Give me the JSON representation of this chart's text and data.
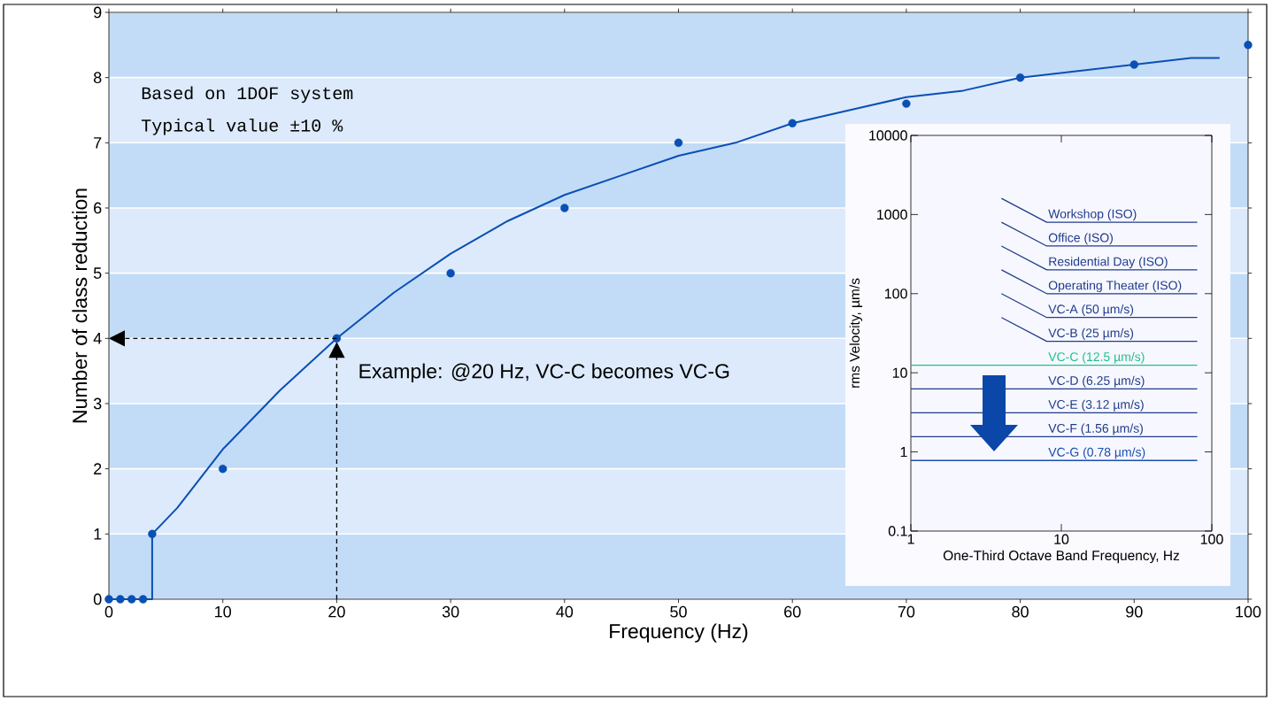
{
  "chart_data": [
    {
      "type": "scatter",
      "xlabel": "Frequency (Hz)",
      "ylabel": "Number of class reduction",
      "xlim": [
        0,
        100
      ],
      "ylim": [
        0,
        9
      ],
      "xticks": [
        0,
        10,
        20,
        30,
        40,
        50,
        60,
        70,
        80,
        90,
        100
      ],
      "yticks": [
        0,
        1,
        2,
        3,
        4,
        5,
        6,
        7,
        8,
        9
      ],
      "grid": "y",
      "annotations": [
        "Based on 1DOF system",
        "Typical value ±10 %",
        {
          "text": "Example: @20 Hz, VC-C becomes VC-G",
          "x": 20,
          "y": 4
        }
      ],
      "series": [
        {
          "type": "scatter",
          "marker": "circle",
          "color": "#0a4fb4",
          "x": [
            0,
            1,
            2,
            3,
            3.8,
            10,
            20,
            30,
            40,
            50,
            60,
            70,
            80,
            90,
            100
          ],
          "values": [
            0,
            0,
            0,
            0,
            1,
            2,
            4,
            5,
            6,
            7,
            7.3,
            7.6,
            8,
            8.2,
            8.5
          ]
        },
        {
          "type": "line",
          "marker": "none",
          "color": "#0a4fb4",
          "x": [
            0,
            3.8,
            3.8,
            6,
            10,
            15,
            20,
            25,
            30,
            35,
            40,
            45,
            50,
            55,
            60,
            65,
            70,
            75,
            80,
            85,
            90,
            95,
            97.5
          ],
          "values": [
            0,
            0,
            1,
            1.4,
            2.3,
            3.2,
            4,
            4.7,
            5.3,
            5.8,
            6.2,
            6.5,
            6.8,
            7.0,
            7.3,
            7.5,
            7.7,
            7.8,
            8.0,
            8.1,
            8.2,
            8.3,
            8.3
          ]
        }
      ]
    },
    {
      "type": "line",
      "xlabel": "One-Third Octave Band Frequency, Hz",
      "ylabel": "rms Velocity, µm/s",
      "log": "xy",
      "xlim": [
        1,
        100
      ],
      "ylim": [
        0.1,
        10000
      ],
      "xticks": [
        1,
        10,
        100
      ],
      "yticks": [
        0.1,
        1,
        10,
        100,
        1000,
        10000
      ],
      "series": [
        {
          "name": "Workshop (ISO)",
          "color": "#1f3d8c",
          "x": [
            4,
            8,
            80
          ],
          "values": [
            1600,
            800,
            800
          ]
        },
        {
          "name": "Office (ISO)",
          "color": "#1f3d8c",
          "x": [
            4,
            8,
            80
          ],
          "values": [
            800,
            400,
            400
          ]
        },
        {
          "name": "Residential Day (ISO)",
          "color": "#1f3d8c",
          "x": [
            4,
            8,
            80
          ],
          "values": [
            400,
            200,
            200
          ]
        },
        {
          "name": "Operating Theater (ISO)",
          "color": "#1f3d8c",
          "x": [
            4,
            8,
            80
          ],
          "values": [
            200,
            100,
            100
          ]
        },
        {
          "name": "VC-A (50 µm/s)",
          "color": "#1f3d8c",
          "x": [
            4,
            8,
            80
          ],
          "values": [
            100,
            50,
            50
          ]
        },
        {
          "name": "VC-B (25 µm/s)",
          "color": "#1f3d8c",
          "x": [
            4,
            8,
            80
          ],
          "values": [
            50,
            25,
            25
          ]
        },
        {
          "name": "VC-C (12.5 µm/s)",
          "color": "#20c08a",
          "x": [
            1,
            80
          ],
          "values": [
            12.5,
            12.5
          ]
        },
        {
          "name": "VC-D (6.25 µm/s)",
          "color": "#1f3d8c",
          "x": [
            1,
            80
          ],
          "values": [
            6.25,
            6.25
          ]
        },
        {
          "name": "VC-E (3.12 µm/s)",
          "color": "#1f3d8c",
          "x": [
            1,
            80
          ],
          "values": [
            3.12,
            3.12
          ]
        },
        {
          "name": "VC-F (1.56 µm/s)",
          "color": "#1f3d8c",
          "x": [
            1,
            80
          ],
          "values": [
            1.56,
            1.56
          ]
        },
        {
          "name": "VC-G (0.78 µm/s)",
          "color": "#1a4fb0",
          "x": [
            1,
            80
          ],
          "values": [
            0.78,
            0.78
          ]
        }
      ]
    }
  ]
}
